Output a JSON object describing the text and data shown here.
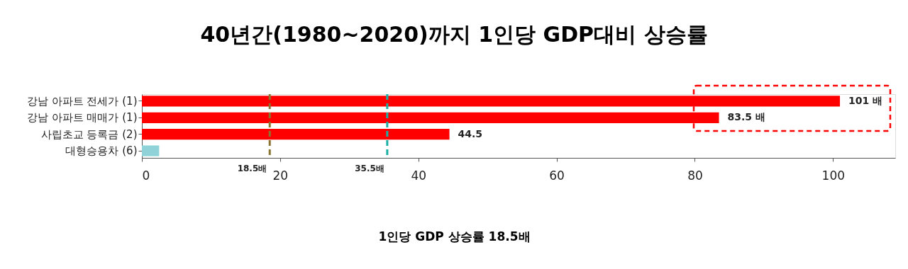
{
  "chart_data": {
    "type": "bar",
    "orientation": "horizontal",
    "title": "40년간(1980~2020)까지 1인당 GDP대비 상승률",
    "xlabel": "1인당 GDP 상승률 18.5배",
    "categories": [
      "강남 아파트 전세가 (1)",
      "강남 아파트 매매가 (1)",
      "사립초교 등록금 (2)",
      "대형승용차 (6)"
    ],
    "values": [
      101,
      83.5,
      44.5,
      2.5
    ],
    "colors": [
      "#ff0000",
      "#ff0000",
      "#ff0000",
      "#8fd3d8"
    ],
    "value_labels": [
      "101 배",
      "83.5 배",
      "44.5",
      null
    ],
    "xlim": [
      0,
      109
    ],
    "xticks": [
      0,
      20,
      40,
      60,
      80,
      100
    ],
    "grid": false,
    "ref_lines": [
      {
        "axis": "x",
        "value": 18.5,
        "label": "18.5배",
        "color": "#8b7532",
        "line_style": "dashed"
      },
      {
        "axis": "x",
        "value": 35.5,
        "label": "35.5배",
        "color": "#1bb0a6",
        "line_style": "dashed"
      }
    ]
  }
}
